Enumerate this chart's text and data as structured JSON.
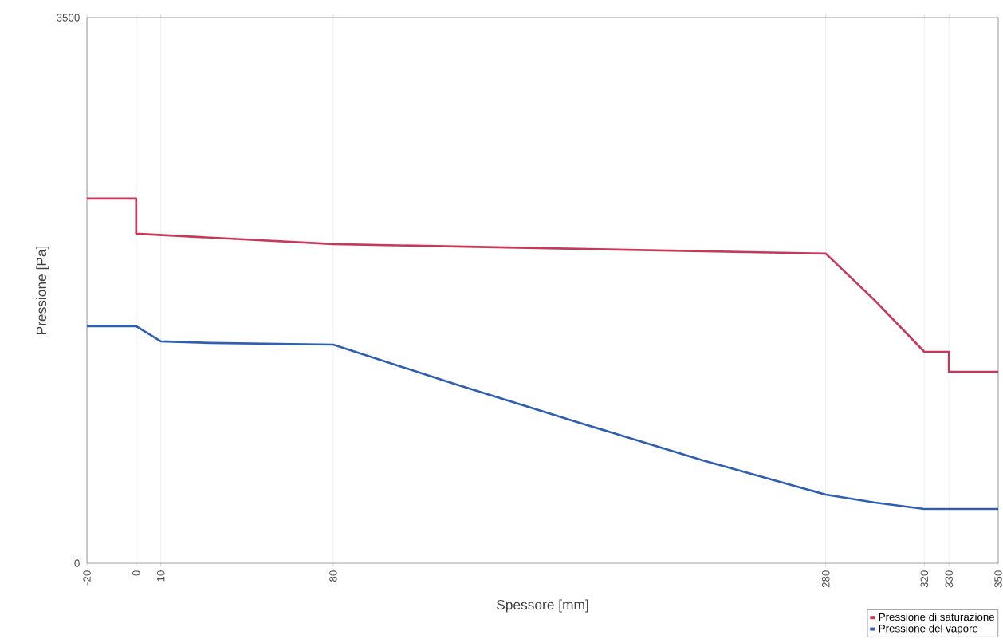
{
  "chart_data": {
    "type": "line",
    "xlabel": "Spessore [mm]",
    "ylabel": "Pressione [Pa]",
    "xlim": [
      -20,
      350
    ],
    "xticks": [
      -20,
      0,
      10,
      80,
      280,
      320,
      330,
      350
    ],
    "ylim": [
      0,
      3500
    ],
    "yticks": [
      0,
      3500
    ],
    "grid": "x",
    "legend": "bottom right",
    "marker": "none",
    "line_style": "solid",
    "series": [
      {
        "name": "Pressione di saturazione",
        "color": "#c8385a",
        "x": [
          -20,
          0,
          0,
          80,
          280,
          300,
          320,
          330,
          330,
          350
        ],
        "values": [
          2339,
          2339,
          2114,
          2047,
          1986,
          1684,
          1356,
          1356,
          1228,
          1228
        ]
      },
      {
        "name": "Pressione del vapore",
        "color": "#2f5fb3",
        "x": [
          -20,
          0,
          10,
          30,
          80,
          130,
          180,
          230,
          280,
          300,
          320,
          350
        ],
        "values": [
          1520,
          1520,
          1423,
          1413,
          1402,
          1146,
          901,
          660,
          440,
          389,
          348,
          348
        ]
      }
    ]
  }
}
